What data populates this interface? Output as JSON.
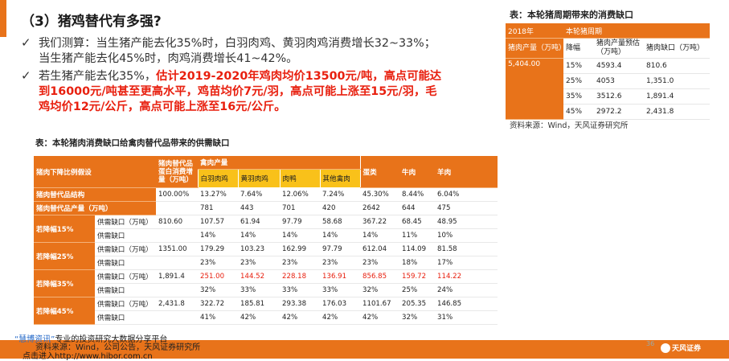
{
  "title": "（3）猪鸡替代有多强?",
  "bullets": [
    {
      "lines": [
        "我们测算：当生猪产能去化35%时，白羽肉鸡、黄羽肉鸡消费增长32~33%；",
        "当生猪产能去化45%时，肉鸡消费增长41~42%。"
      ]
    },
    {
      "prefix": "若生猪产能去化35%，",
      "highlight_lines": [
        "估计2019-2020年鸡肉均价13500元/吨，高点可能达",
        "到16000元/吨甚至更高水平，鸡苗均价7元/羽，高点可能上涨至15元/羽，毛",
        "鸡均价12元/公斤，高点可能上涨至16元/公斤。"
      ]
    }
  ],
  "right_table": {
    "title": "表：本轮猪周期带来的消费缺口",
    "header1": [
      "2018年",
      "本轮猪周期"
    ],
    "header2": [
      "猪肉产量（万吨）",
      "降幅",
      "猪肉产量预估（万吨）",
      "猪肉缺口（万吨）"
    ],
    "base_value": "5,404.00",
    "rows": [
      [
        "15%",
        "4593.4",
        "810.6"
      ],
      [
        "25%",
        "4053",
        "1,351.0"
      ],
      [
        "35%",
        "3512.6",
        "1,891.4"
      ],
      [
        "45%",
        "2972.2",
        "2,431.8"
      ]
    ],
    "source": "资料来源：Wind，天风证券研究所"
  },
  "main_table": {
    "title": "表：本轮猪肉消费缺口给禽肉替代品带来的供需缺口",
    "poultry_header": "禽肉产量",
    "header": {
      "c0": "猪肉下降比例假设",
      "c2": "猪肉替代品蛋白消费增量（万吨）",
      "poultry": [
        "白羽肉鸡",
        "黄羽肉鸡",
        "肉鸭",
        "其他禽肉"
      ],
      "others": [
        "蛋类",
        "牛肉",
        "羊肉"
      ]
    },
    "structure_row": {
      "label": "猪肉替代品结构",
      "c2": "100.00%",
      "values": [
        "13.27%",
        "7.64%",
        "12.06%",
        "7.24%",
        "45.30%",
        "8.44%",
        "6.04%"
      ]
    },
    "output_row": {
      "label": "猪肉替代品产量（万吨）",
      "values": [
        "781",
        "443",
        "701",
        "420",
        "2642",
        "644",
        "475"
      ]
    },
    "scenarios": [
      {
        "label": "若降幅15%",
        "gap_label": "供需缺口（万吨）",
        "increment": "810.60",
        "gap_values": [
          "107.57",
          "61.94",
          "97.79",
          "58.68",
          "367.22",
          "68.45",
          "48.95"
        ],
        "pct_label": "供需缺口",
        "pct_values": [
          "14%",
          "14%",
          "14%",
          "14%",
          "14%",
          "11%",
          "10%"
        ],
        "red": false
      },
      {
        "label": "若降幅25%",
        "gap_label": "供需缺口（万吨）",
        "increment": "1351.00",
        "gap_values": [
          "179.29",
          "103.23",
          "162.99",
          "97.79",
          "612.04",
          "114.09",
          "81.58"
        ],
        "pct_label": "供需缺口",
        "pct_values": [
          "23%",
          "23%",
          "23%",
          "23%",
          "23%",
          "18%",
          "17%"
        ],
        "red": false
      },
      {
        "label": "若降幅35%",
        "gap_label": "供需缺口（万吨）",
        "increment": "1,891.4",
        "gap_values": [
          "251.00",
          "144.52",
          "228.18",
          "136.91",
          "856.85",
          "159.72",
          "114.22"
        ],
        "pct_label": "供需缺口",
        "pct_values": [
          "32%",
          "33%",
          "33%",
          "33%",
          "32%",
          "25%",
          "24%"
        ],
        "red": true
      },
      {
        "label": "若降幅45%",
        "gap_label": "供需缺口（万吨）",
        "increment": "2,431.8",
        "gap_values": [
          "322.72",
          "185.81",
          "293.38",
          "176.03",
          "1101.67",
          "205.35",
          "146.85"
        ],
        "pct_label": "供需缺口",
        "pct_values": [
          "41%",
          "42%",
          "42%",
          "42%",
          "42%",
          "32%",
          "31%"
        ],
        "red": false
      }
    ]
  },
  "footer": {
    "source": "资料来源：Wind，公司公告，天风证券研究所",
    "promo_brand": "“慧博资讯”",
    "promo_text": "专业的投资研究大数据分享平台",
    "link_text": "点击进入",
    "link_url": "http://www.hibor.com.cn",
    "page_num": "36",
    "logo_text": "天风证券"
  },
  "colors": {
    "accent_orange": "#e8731a",
    "highlight_yellow": "#f9c11a",
    "emphasis_red": "#e8200f"
  }
}
